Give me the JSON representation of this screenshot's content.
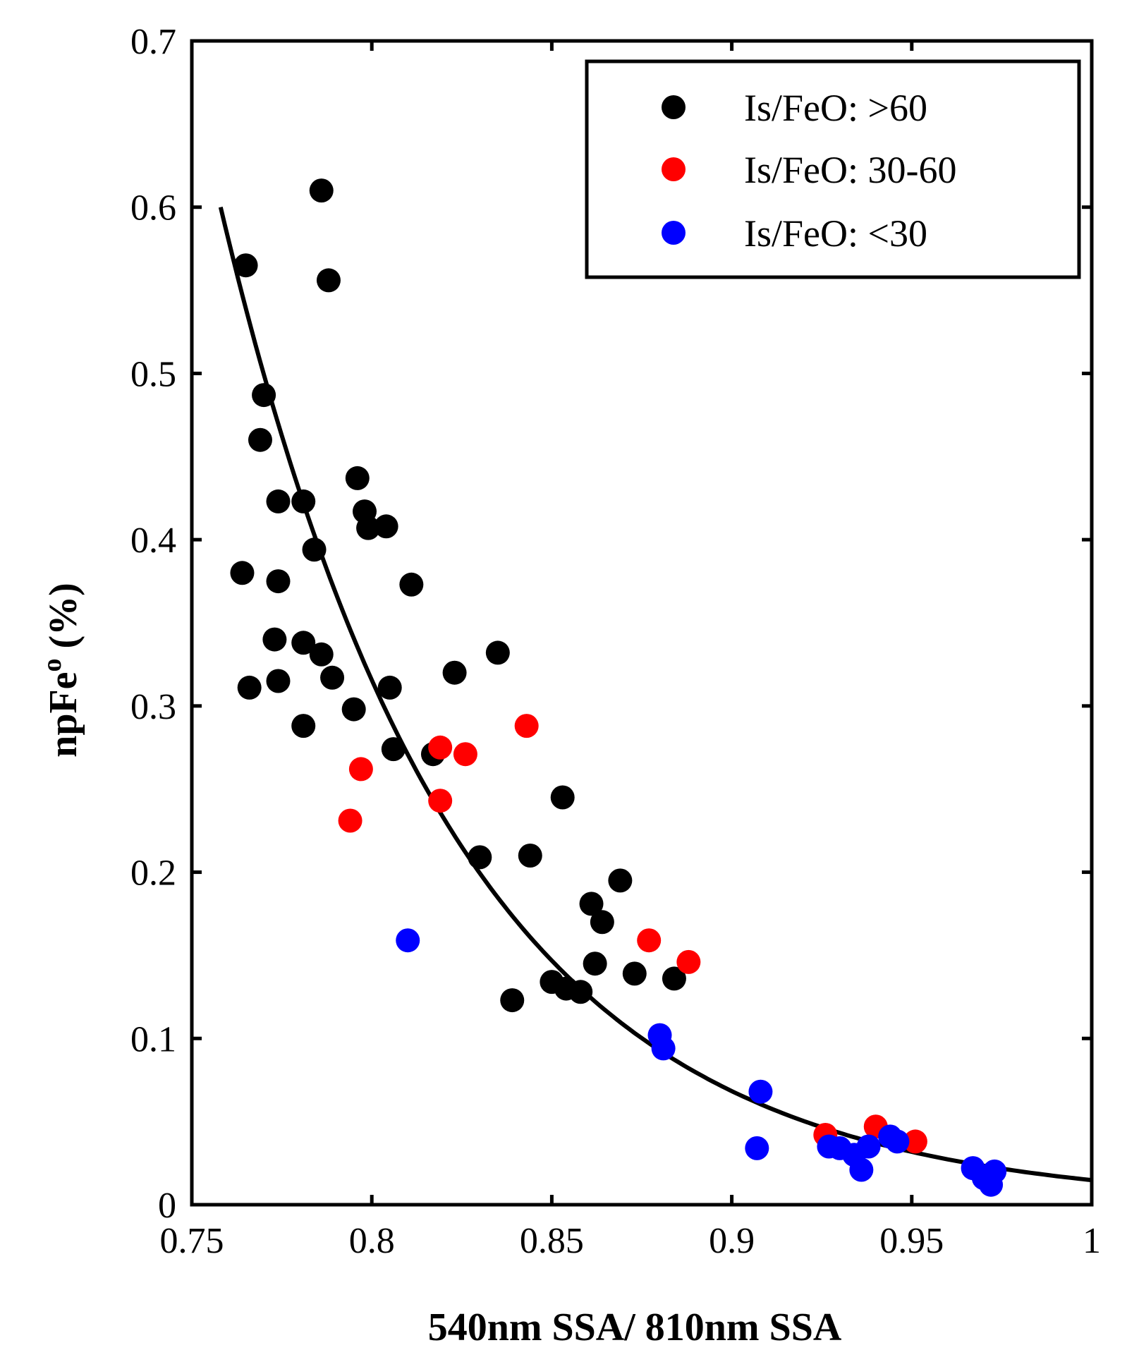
{
  "chart_data": {
    "type": "scatter",
    "xlabel": "540nm SSA/ 810nm SSA",
    "ylabel": "npFe",
    "ylabel_superscript": "o",
    "ylabel_suffix": " (%)",
    "xlim": [
      0.75,
      1
    ],
    "ylim": [
      0,
      0.7
    ],
    "xticks": [
      0.75,
      0.8,
      0.85,
      0.9,
      0.95,
      1
    ],
    "xtick_labels": [
      "0.75",
      "0.8",
      "0.85",
      "0.9",
      "0.95",
      "1"
    ],
    "yticks": [
      0,
      0.1,
      0.2,
      0.3,
      0.4,
      0.5,
      0.6,
      0.7
    ],
    "ytick_labels": [
      "0",
      "0.1",
      "0.2",
      "0.3",
      "0.4",
      "0.5",
      "0.6",
      "0.7"
    ],
    "legend_position": "top-right",
    "series": [
      {
        "name": "Is/FeO: >60",
        "color": "#000000",
        "points": [
          [
            0.786,
            0.61
          ],
          [
            0.788,
            0.556
          ],
          [
            0.765,
            0.565
          ],
          [
            0.77,
            0.487
          ],
          [
            0.769,
            0.46
          ],
          [
            0.774,
            0.423
          ],
          [
            0.781,
            0.423
          ],
          [
            0.796,
            0.437
          ],
          [
            0.798,
            0.417
          ],
          [
            0.799,
            0.407
          ],
          [
            0.804,
            0.408
          ],
          [
            0.784,
            0.394
          ],
          [
            0.764,
            0.38
          ],
          [
            0.774,
            0.375
          ],
          [
            0.811,
            0.373
          ],
          [
            0.773,
            0.34
          ],
          [
            0.781,
            0.338
          ],
          [
            0.786,
            0.331
          ],
          [
            0.835,
            0.332
          ],
          [
            0.823,
            0.32
          ],
          [
            0.789,
            0.317
          ],
          [
            0.766,
            0.311
          ],
          [
            0.774,
            0.315
          ],
          [
            0.805,
            0.311
          ],
          [
            0.795,
            0.298
          ],
          [
            0.781,
            0.288
          ],
          [
            0.806,
            0.274
          ],
          [
            0.817,
            0.271
          ],
          [
            0.853,
            0.245
          ],
          [
            0.83,
            0.209
          ],
          [
            0.844,
            0.21
          ],
          [
            0.869,
            0.195
          ],
          [
            0.861,
            0.181
          ],
          [
            0.864,
            0.17
          ],
          [
            0.862,
            0.145
          ],
          [
            0.873,
            0.139
          ],
          [
            0.884,
            0.136
          ],
          [
            0.85,
            0.134
          ],
          [
            0.854,
            0.13
          ],
          [
            0.858,
            0.128
          ],
          [
            0.839,
            0.123
          ]
        ]
      },
      {
        "name": "Is/FeO: 30-60",
        "color": "#ff0000",
        "points": [
          [
            0.843,
            0.288
          ],
          [
            0.819,
            0.275
          ],
          [
            0.826,
            0.271
          ],
          [
            0.797,
            0.262
          ],
          [
            0.819,
            0.243
          ],
          [
            0.794,
            0.231
          ],
          [
            0.877,
            0.159
          ],
          [
            0.888,
            0.146
          ],
          [
            0.94,
            0.047
          ],
          [
            0.951,
            0.038
          ],
          [
            0.926,
            0.042
          ]
        ]
      },
      {
        "name": "Is/FeO: <30",
        "color": "#0000ff",
        "points": [
          [
            0.81,
            0.159
          ],
          [
            0.88,
            0.102
          ],
          [
            0.881,
            0.094
          ],
          [
            0.908,
            0.068
          ],
          [
            0.907,
            0.034
          ],
          [
            0.927,
            0.035
          ],
          [
            0.93,
            0.034
          ],
          [
            0.934,
            0.03
          ],
          [
            0.938,
            0.035
          ],
          [
            0.936,
            0.021
          ],
          [
            0.944,
            0.041
          ],
          [
            0.946,
            0.038
          ],
          [
            0.967,
            0.022
          ],
          [
            0.97,
            0.016
          ],
          [
            0.973,
            0.02
          ],
          [
            0.972,
            0.012
          ]
        ]
      }
    ],
    "fit_curve": {
      "type": "exponential",
      "description": "y = a * exp(-b * (x - x0))",
      "a": 0.6,
      "b": 15.3,
      "x0": 0.758,
      "x_range": [
        0.758,
        1.0
      ],
      "color": "#000000"
    }
  }
}
